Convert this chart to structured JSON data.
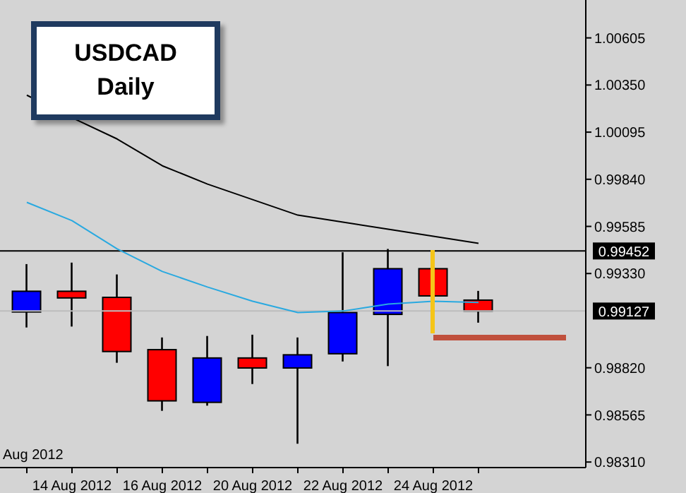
{
  "chart_data": {
    "type": "candlestick",
    "title": "USDCAD",
    "subtitle": "Daily",
    "categories": [
      null,
      "14 Aug 2012",
      null,
      "16 Aug 2012",
      null,
      "20 Aug 2012",
      null,
      "22 Aug 2012",
      null,
      "24 Aug 2012",
      null
    ],
    "ohlc": [
      [
        0.99122,
        0.99381,
        0.99038,
        0.99234
      ],
      [
        0.99234,
        0.99389,
        0.99043,
        0.99198
      ],
      [
        0.99201,
        0.99325,
        0.98847,
        0.98908
      ],
      [
        0.98918,
        0.98984,
        0.98587,
        0.98641
      ],
      [
        0.98633,
        0.98992,
        0.98615,
        0.98873
      ],
      [
        0.98873,
        0.98999,
        0.98732,
        0.98819
      ],
      [
        0.98819,
        0.98984,
        0.98409,
        0.9889
      ],
      [
        0.98896,
        0.99445,
        0.98854,
        0.99119
      ],
      [
        0.99109,
        0.99463,
        0.98829,
        0.99356
      ],
      [
        0.99356,
        0.99356,
        0.99209,
        0.99209
      ],
      [
        0.99186,
        0.99236,
        0.99064,
        0.99127
      ]
    ],
    "colors": [
      "#0000ff",
      "#ff0000",
      "#ff0000",
      "#ff0000",
      "#0000ff",
      "#ff0000",
      "#0000ff",
      "#0000ff",
      "#0000ff",
      "#ff0000",
      "#ff0000"
    ],
    "series": [
      {
        "type": "line",
        "color": "#000000",
        "values": [
          1.00295,
          1.00173,
          1.00058,
          0.99913,
          0.99814,
          0.9973,
          0.99646,
          0.99608,
          0.9957,
          0.99532,
          0.99493
        ]
      },
      {
        "type": "line",
        "color": "#29a9e0",
        "values": [
          0.99715,
          0.99616,
          0.99463,
          0.99341,
          0.99257,
          0.9918,
          0.99119,
          0.99127,
          0.99165,
          0.9918,
          0.99173
        ]
      }
    ],
    "ylim": [
      0.9828,
      1.0081
    ],
    "yticks": [
      {
        "value": 0.9831,
        "label": "0.98310"
      },
      0.98565,
      {
        "value": 0.9882,
        "label": "0.98820"
      },
      {
        "value": 0.9933,
        "label": "0.99330"
      },
      0.99585,
      {
        "value": 0.9984,
        "label": "0.99840"
      },
      1.00095,
      {
        "value": 1.0035,
        "label": "1.00350"
      },
      1.00605
    ],
    "ref_lines": [
      {
        "axis": "y",
        "value": 0.99452,
        "label": "0.99452",
        "color": "#000000"
      },
      {
        "axis": "y",
        "value": 0.99127,
        "label": "0.99127",
        "color": "#bdbdbd"
      }
    ],
    "annotations": [
      "Aug 2012"
    ],
    "grid": false
  }
}
